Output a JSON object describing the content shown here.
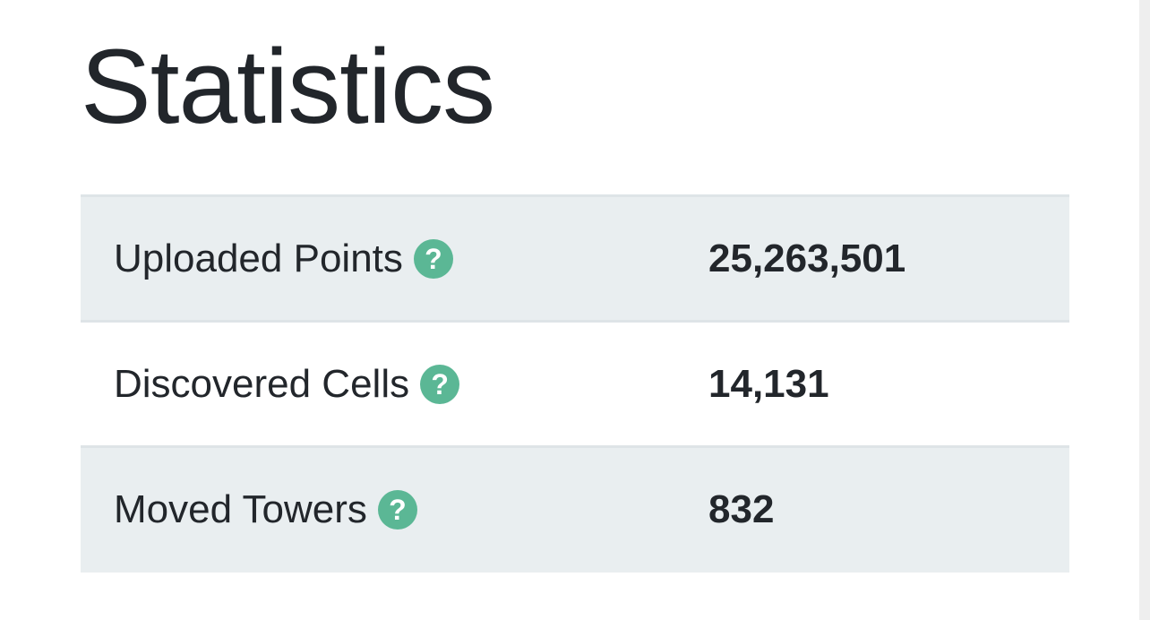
{
  "page": {
    "title": "Statistics"
  },
  "stats": {
    "rows": [
      {
        "label": "Uploaded Points",
        "value": "25,263,501",
        "help_icon": "question-circle-icon"
      },
      {
        "label": "Discovered Cells",
        "value": "14,131",
        "help_icon": "question-circle-icon"
      },
      {
        "label": "Moved Towers",
        "value": "832",
        "help_icon": "question-circle-icon"
      }
    ]
  },
  "colors": {
    "text": "#22262b",
    "row_alt": "#e9eef0",
    "border": "#dee4e7",
    "help_icon": "#5bb795"
  },
  "icons": {
    "help_glyph": "?"
  }
}
